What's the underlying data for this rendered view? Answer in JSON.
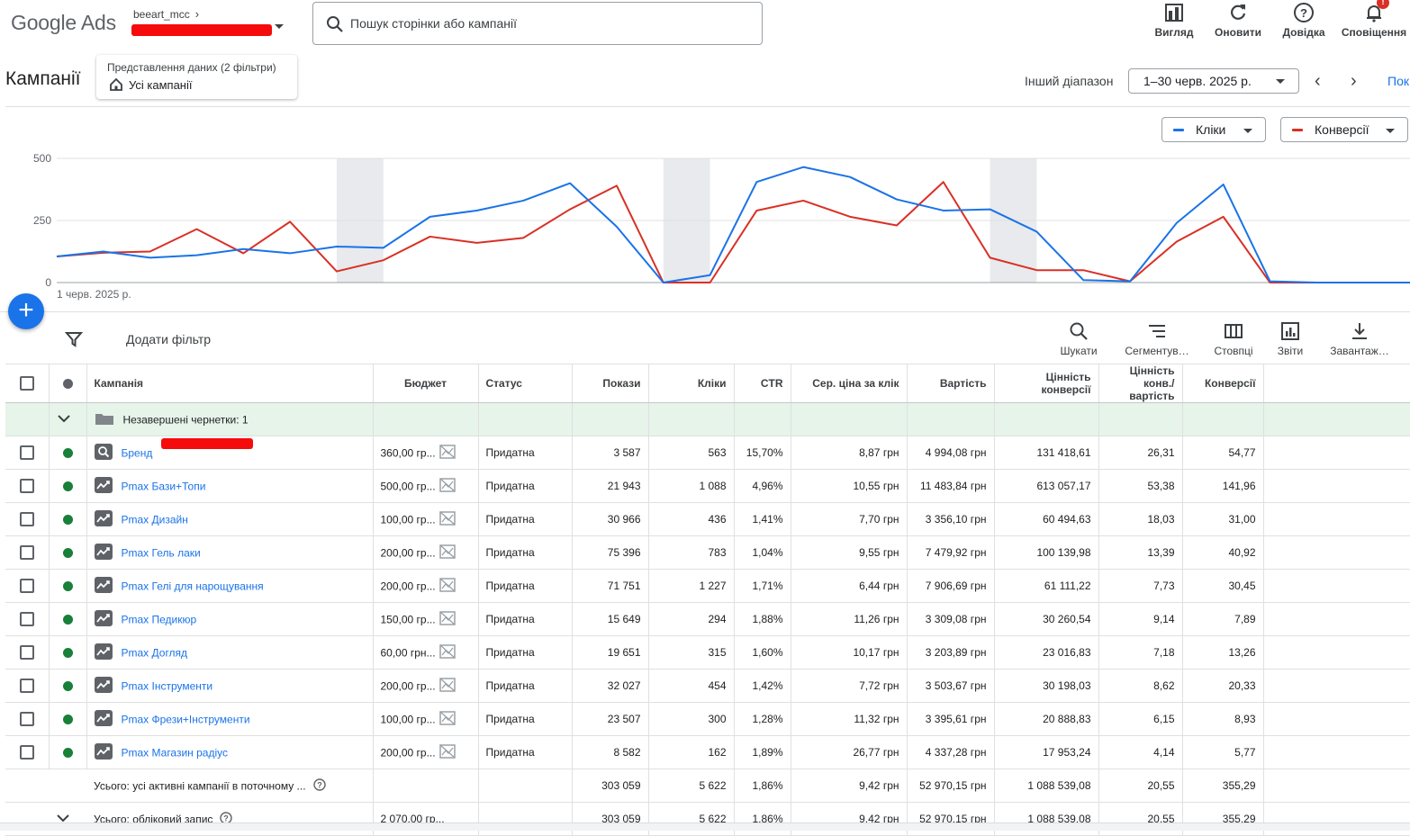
{
  "app": {
    "logo": "Google Ads",
    "account": "beeart_mcc",
    "search_placeholder": "Пошук сторінки або кампанії",
    "toolbar": [
      {
        "label": "Вигляд",
        "icon": "appearance-icon"
      },
      {
        "label": "Оновити",
        "icon": "refresh-icon"
      },
      {
        "label": "Довідка",
        "icon": "help-icon"
      },
      {
        "label": "Сповіщення",
        "icon": "bell-icon",
        "badge": "!"
      }
    ]
  },
  "header": {
    "title": "Кампанії",
    "view_sub": "Представлення даних (2 фільтри)",
    "view_main": "Усі кампанії",
    "range_label": "Інший діапазон",
    "range_value": "1–30 черв. 2025 р.",
    "show_link": "Пок"
  },
  "metrics": {
    "clicks_label": "Кліки",
    "conversions_label": "Конверсії",
    "clicks_color": "#1a73e8",
    "conversions_color": "#d93025"
  },
  "chart_data": {
    "type": "line",
    "x_start_label": "1 черв. 2025 р.",
    "y_ticks": [
      "500",
      "250",
      "0"
    ],
    "ylim": [
      0,
      500
    ],
    "x": [
      1,
      2,
      3,
      4,
      5,
      6,
      7,
      8,
      9,
      10,
      11,
      12,
      13,
      14,
      15,
      16,
      17,
      18,
      19,
      20,
      21,
      22,
      23,
      24,
      25,
      26,
      27,
      28,
      29,
      30
    ],
    "weekend_bands": [
      [
        7,
        8
      ],
      [
        14,
        15
      ],
      [
        21,
        22
      ]
    ],
    "series": [
      {
        "name": "Кліки",
        "color": "#1a73e8",
        "values": [
          105,
          125,
          100,
          110,
          135,
          118,
          145,
          140,
          265,
          290,
          330,
          400,
          225,
          0,
          30,
          405,
          465,
          425,
          335,
          290,
          295,
          205,
          10,
          5,
          240,
          395,
          5,
          0,
          0,
          0
        ]
      },
      {
        "name": "Конверсії",
        "color": "#d93025",
        "values": [
          105,
          120,
          125,
          215,
          118,
          245,
          45,
          90,
          185,
          160,
          180,
          295,
          390,
          0,
          0,
          290,
          330,
          265,
          230,
          405,
          100,
          50,
          50,
          5,
          165,
          265,
          0,
          0,
          0,
          0
        ]
      }
    ]
  },
  "filters": {
    "add_filter": "Додати фільтр",
    "tools": [
      {
        "label": "Шукати",
        "icon": "search-icon"
      },
      {
        "label": "Сегментув…",
        "icon": "segment-icon"
      },
      {
        "label": "Стовпці",
        "icon": "columns-icon"
      },
      {
        "label": "Звіти",
        "icon": "reports-icon"
      },
      {
        "label": "Завантаж…",
        "icon": "download-icon"
      }
    ]
  },
  "table": {
    "headers": {
      "campaign": "Кампанія",
      "budget": "Бюджет",
      "status": "Статус",
      "impressions": "Покази",
      "clicks": "Кліки",
      "ctr": "CTR",
      "avg_cpc": "Сер. ціна за клік",
      "cost": "Вартість",
      "conv_value_1": "Цінність",
      "conv_value_2": "конверсії",
      "conv_value_cost_1": "Цінність",
      "conv_value_cost_2": "конв./вартість",
      "conversions": "Конверсії"
    },
    "draft_row": "Незавершені чернетки: 1",
    "rows": [
      {
        "name": "Бренд",
        "type": "search",
        "budget": "360,00 гр...",
        "status": "Придатна",
        "impr": "3 587",
        "clicks": "563",
        "ctr": "15,70%",
        "cpc": "8,87 грн",
        "cost": "4 994,08 грн",
        "value": "131 418,61",
        "vc": "26,31",
        "conv": "54,77"
      },
      {
        "name": "Pmax Бази+Топи",
        "type": "pmax",
        "budget": "500,00 гр...",
        "status": "Придатна",
        "impr": "21 943",
        "clicks": "1 088",
        "ctr": "4,96%",
        "cpc": "10,55 грн",
        "cost": "11 483,84 грн",
        "value": "613 057,17",
        "vc": "53,38",
        "conv": "141,96"
      },
      {
        "name": "Pmax Дизайн",
        "type": "pmax",
        "budget": "100,00 гр...",
        "status": "Придатна",
        "impr": "30 966",
        "clicks": "436",
        "ctr": "1,41%",
        "cpc": "7,70 грн",
        "cost": "3 356,10 грн",
        "value": "60 494,63",
        "vc": "18,03",
        "conv": "31,00"
      },
      {
        "name": "Pmax Гель лаки",
        "type": "pmax",
        "budget": "200,00 гр...",
        "status": "Придатна",
        "impr": "75 396",
        "clicks": "783",
        "ctr": "1,04%",
        "cpc": "9,55 грн",
        "cost": "7 479,92 грн",
        "value": "100 139,98",
        "vc": "13,39",
        "conv": "40,92"
      },
      {
        "name": "Pmax Гелі для нарощування",
        "type": "pmax",
        "budget": "200,00 гр...",
        "status": "Придатна",
        "impr": "71 751",
        "clicks": "1 227",
        "ctr": "1,71%",
        "cpc": "6,44 грн",
        "cost": "7 906,69 грн",
        "value": "61 111,22",
        "vc": "7,73",
        "conv": "30,45"
      },
      {
        "name": "Pmax Педикюр",
        "type": "pmax",
        "budget": "150,00 гр...",
        "status": "Придатна",
        "impr": "15 649",
        "clicks": "294",
        "ctr": "1,88%",
        "cpc": "11,26 грн",
        "cost": "3 309,08 грн",
        "value": "30 260,54",
        "vc": "9,14",
        "conv": "7,89"
      },
      {
        "name": "Pmax Догляд",
        "type": "pmax",
        "budget": "60,00 грн...",
        "status": "Придатна",
        "impr": "19 651",
        "clicks": "315",
        "ctr": "1,60%",
        "cpc": "10,17 грн",
        "cost": "3 203,89 грн",
        "value": "23 016,83",
        "vc": "7,18",
        "conv": "13,26"
      },
      {
        "name": "Pmax Інструменти",
        "type": "pmax",
        "budget": "200,00 гр...",
        "status": "Придатна",
        "impr": "32 027",
        "clicks": "454",
        "ctr": "1,42%",
        "cpc": "7,72 грн",
        "cost": "3 503,67 грн",
        "value": "30 198,03",
        "vc": "8,62",
        "conv": "20,33"
      },
      {
        "name": "Pmax Фрези+Інструменти",
        "type": "pmax",
        "budget": "100,00 гр...",
        "status": "Придатна",
        "impr": "23 507",
        "clicks": "300",
        "ctr": "1,28%",
        "cpc": "11,32 грн",
        "cost": "3 395,61 грн",
        "value": "20 888,83",
        "vc": "6,15",
        "conv": "8,93"
      },
      {
        "name": "Pmax Магазин радіус",
        "type": "pmax",
        "budget": "200,00 гр...",
        "status": "Придатна",
        "impr": "8 582",
        "clicks": "162",
        "ctr": "1,89%",
        "cpc": "26,77 грн",
        "cost": "4 337,28 грн",
        "value": "17 953,24",
        "vc": "4,14",
        "conv": "5,77"
      }
    ],
    "total_active": {
      "label": "Усього: усі активні кампанії в поточному ...",
      "budget": "",
      "impr": "303 059",
      "clicks": "5 622",
      "ctr": "1,86%",
      "cpc": "9,42 грн",
      "cost": "52 970,15 грн",
      "value": "1 088 539,08",
      "vc": "20,55",
      "conv": "355,29"
    },
    "total_account": {
      "label": "Усього: обліковий запис",
      "budget": "2 070,00 гр...",
      "impr": "303 059",
      "clicks": "5 622",
      "ctr": "1,86%",
      "cpc": "9,42 грн",
      "cost": "52 970,15 грн",
      "value": "1 088 539,08",
      "vc": "20,55",
      "conv": "355,29"
    }
  }
}
